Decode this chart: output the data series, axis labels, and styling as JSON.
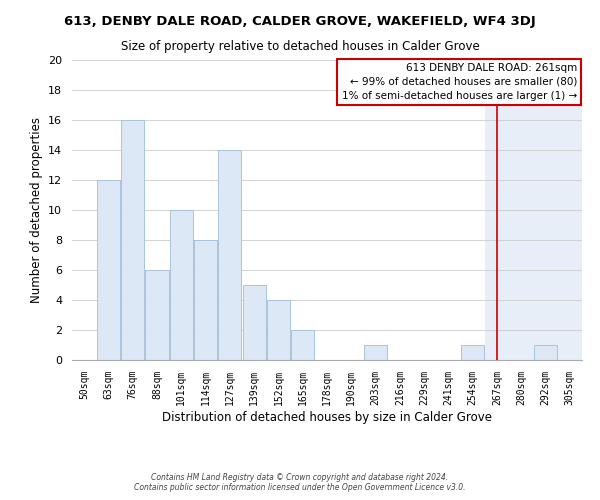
{
  "title": "613, DENBY DALE ROAD, CALDER GROVE, WAKEFIELD, WF4 3DJ",
  "subtitle": "Size of property relative to detached houses in Calder Grove",
  "xlabel": "Distribution of detached houses by size in Calder Grove",
  "ylabel": "Number of detached properties",
  "bar_color": "#dce8f5",
  "bar_edge_color": "#a8c4dc",
  "bar_color_right": "#dce8f5",
  "categories": [
    "50sqm",
    "63sqm",
    "76sqm",
    "88sqm",
    "101sqm",
    "114sqm",
    "127sqm",
    "139sqm",
    "152sqm",
    "165sqm",
    "178sqm",
    "190sqm",
    "203sqm",
    "216sqm",
    "229sqm",
    "241sqm",
    "254sqm",
    "267sqm",
    "280sqm",
    "292sqm",
    "305sqm"
  ],
  "values": [
    0,
    12,
    16,
    6,
    10,
    8,
    14,
    5,
    4,
    2,
    0,
    0,
    1,
    0,
    0,
    0,
    1,
    0,
    0,
    1,
    0
  ],
  "ylim": [
    0,
    20
  ],
  "yticks": [
    0,
    2,
    4,
    6,
    8,
    10,
    12,
    14,
    16,
    18,
    20
  ],
  "vline_x_idx": 17,
  "vline_color": "#cc0000",
  "annotation_title": "613 DENBY DALE ROAD: 261sqm",
  "annotation_line1": "← 99% of detached houses are smaller (80)",
  "annotation_line2": "1% of semi-detached houses are larger (1) →",
  "annotation_box_color": "#ffffff",
  "annotation_box_edge": "#cc0000",
  "footer1": "Contains HM Land Registry data © Crown copyright and database right 2024.",
  "footer2": "Contains public sector information licensed under the Open Government Licence v3.0.",
  "grid_color": "#cccccc",
  "bg_color_left": "#ffffff",
  "bg_color_right": "#e8eef8"
}
